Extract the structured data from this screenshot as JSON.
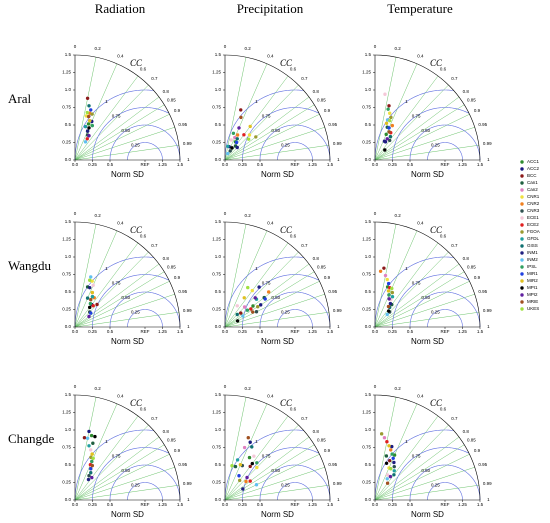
{
  "figure": {
    "column_titles": [
      "Radiation",
      "Precipitation",
      "Temperature"
    ],
    "row_titles": [
      "Aral",
      "Wangdu",
      "Changde"
    ],
    "legend": [
      {
        "name": "ACC1",
        "color": "#2e8b2e"
      },
      {
        "name": "ACC2",
        "color": "#1a1a80"
      },
      {
        "name": "BCC",
        "color": "#8b1a1a"
      },
      {
        "name": "Can1",
        "color": "#1f5f3f"
      },
      {
        "name": "Can2",
        "color": "#e080c0"
      },
      {
        "name": "CNR1",
        "color": "#f0e040"
      },
      {
        "name": "CNR2",
        "color": "#f08020"
      },
      {
        "name": "CNR3",
        "color": "#305050"
      },
      {
        "name": "ECE1",
        "color": "#f4c8d8"
      },
      {
        "name": "ECE2",
        "color": "#e02020"
      },
      {
        "name": "FGOA",
        "color": "#9a9a30"
      },
      {
        "name": "GFDL",
        "color": "#20a0a0"
      },
      {
        "name": "GISS",
        "color": "#107070"
      },
      {
        "name": "INM1",
        "color": "#202080"
      },
      {
        "name": "INM2",
        "color": "#60c0f0"
      },
      {
        "name": "IPSL",
        "color": "#30a060"
      },
      {
        "name": "MIR1",
        "color": "#2040e0"
      },
      {
        "name": "MIR2",
        "color": "#e0c020"
      },
      {
        "name": "MPI1",
        "color": "#000000"
      },
      {
        "name": "MPI2",
        "color": "#6020a0"
      },
      {
        "name": "MRIE",
        "color": "#a05020"
      },
      {
        "name": "UKES",
        "color": "#a0e040"
      }
    ]
  },
  "axes": {
    "xlabel": "Norm SD",
    "cc_label": "CC",
    "sdlim": [
      0,
      1.5
    ],
    "xticks": [
      {
        "value": 0,
        "label": "0.0"
      },
      0.25,
      0.5,
      {
        "value": 1,
        "label": "REF"
      },
      1.25,
      1.5
    ],
    "yticks": [
      {
        "value": 0,
        "label": "0.0"
      },
      0.25,
      0.5,
      0.75,
      {
        "value": 1,
        "label": "1.0"
      },
      1.25,
      1.5
    ],
    "cc_ticks": [
      0,
      0.2,
      0.4,
      0.6,
      0.7,
      0.8,
      0.85,
      0.9,
      0.95,
      0.99,
      1
    ],
    "rms_levels": [
      0.25,
      {
        "value": 0.5,
        "label": "0.50"
      },
      0.75,
      1
    ]
  },
  "chart_data": [
    {
      "type": "taylor",
      "sd": [
        0.55,
        0.6,
        0.9,
        0.45,
        0.5,
        0.65,
        0.7,
        0.4,
        0.6,
        0.35,
        0.7,
        0.5,
        0.8,
        0.45,
        0.3,
        0.55,
        0.75,
        0.6,
        0.5,
        0.4,
        0.65,
        0.7
      ],
      "cc": [
        0.35,
        0.4,
        0.2,
        0.4,
        0.3,
        0.25,
        0.3,
        0.45,
        0.35,
        0.5,
        0.35,
        0.3,
        0.25,
        0.4,
        0.5,
        0.45,
        0.3,
        0.35,
        0.4,
        0.5,
        0.3,
        0.25
      ]
    },
    {
      "type": "taylor",
      "sd": [
        0.3,
        0.2,
        0.75,
        0.25,
        0.35,
        0.5,
        0.4,
        0.15,
        0.3,
        0.45,
        0.55,
        0.2,
        0.35,
        0.25,
        0.1,
        0.4,
        0.3,
        0.6,
        0.2,
        0.5,
        0.65,
        0.45
      ],
      "cc": [
        0.5,
        0.3,
        0.3,
        0.6,
        0.4,
        0.7,
        0.45,
        0.5,
        0.3,
        0.6,
        0.8,
        0.2,
        0.5,
        0.7,
        0.4,
        0.3,
        0.55,
        0.6,
        0.5,
        0.4,
        0.35,
        0.75
      ]
    },
    {
      "type": "taylor",
      "sd": [
        0.4,
        0.3,
        0.8,
        0.5,
        0.6,
        0.7,
        0.55,
        0.35,
        0.95,
        0.45,
        0.65,
        0.5,
        0.4,
        0.3,
        0.6,
        0.75,
        0.5,
        0.55,
        0.2,
        0.35,
        0.45,
        0.6
      ],
      "cc": [
        0.4,
        0.5,
        0.25,
        0.35,
        0.3,
        0.3,
        0.45,
        0.6,
        0.15,
        0.5,
        0.35,
        0.4,
        0.55,
        0.45,
        0.3,
        0.25,
        0.4,
        0.3,
        0.7,
        0.5,
        0.45,
        0.35
      ]
    },
    {
      "type": "taylor",
      "sd": [
        0.5,
        0.4,
        0.45,
        0.6,
        0.55,
        0.7,
        0.5,
        0.3,
        0.65,
        0.4,
        0.35,
        0.5,
        0.45,
        0.6,
        0.75,
        0.4,
        0.3,
        0.55,
        0.35,
        0.25,
        0.45,
        0.7
      ],
      "cc": [
        0.5,
        0.6,
        0.7,
        0.3,
        0.45,
        0.35,
        0.55,
        0.7,
        0.4,
        0.65,
        0.6,
        0.5,
        0.4,
        0.35,
        0.3,
        0.55,
        0.75,
        0.45,
        0.6,
        0.8,
        0.5,
        0.3
      ]
    },
    {
      "type": "taylor",
      "sd": [
        0.5,
        0.6,
        0.3,
        0.7,
        0.4,
        0.65,
        0.8,
        0.5,
        0.35,
        0.45,
        0.55,
        0.6,
        0.25,
        0.75,
        0.3,
        0.4,
        0.7,
        0.5,
        0.2,
        0.6,
        0.45,
        0.65
      ],
      "cc": [
        0.8,
        0.85,
        0.75,
        0.8,
        0.7,
        0.6,
        0.78,
        0.9,
        0.5,
        0.82,
        0.85,
        0.75,
        0.7,
        0.65,
        0.85,
        0.8,
        0.82,
        0.55,
        0.9,
        0.72,
        0.88,
        0.5
      ]
    },
    {
      "type": "taylor",
      "sd": [
        0.6,
        0.5,
        0.85,
        0.4,
        0.75,
        0.7,
        0.8,
        0.3,
        0.45,
        0.6,
        0.55,
        0.5,
        0.35,
        0.4,
        0.25,
        0.5,
        0.65,
        0.55,
        0.3,
        0.45,
        0.35,
        0.6
      ],
      "cc": [
        0.3,
        0.4,
        0.15,
        0.6,
        0.2,
        0.25,
        0.1,
        0.7,
        0.5,
        0.35,
        0.45,
        0.5,
        0.6,
        0.55,
        0.7,
        0.4,
        0.3,
        0.35,
        0.65,
        0.45,
        0.55,
        0.4
      ]
    },
    {
      "type": "taylor",
      "sd": [
        0.95,
        1.0,
        0.9,
        0.85,
        0.6,
        0.7,
        0.5,
        0.4,
        0.75,
        0.55,
        0.65,
        0.8,
        0.45,
        0.35,
        0.9,
        0.6,
        0.5,
        0.7,
        0.95,
        0.4,
        0.55,
        0.65
      ],
      "cc": [
        0.25,
        0.2,
        0.15,
        0.3,
        0.4,
        0.35,
        0.45,
        0.5,
        0.3,
        0.4,
        0.35,
        0.25,
        0.5,
        0.55,
        0.2,
        0.4,
        0.45,
        0.35,
        0.3,
        0.6,
        0.45,
        0.4
      ]
    },
    {
      "type": "taylor",
      "sd": [
        0.7,
        0.9,
        0.6,
        0.5,
        0.8,
        0.65,
        0.4,
        0.55,
        0.75,
        0.45,
        0.35,
        0.6,
        0.85,
        0.3,
        0.5,
        0.7,
        0.4,
        0.55,
        0.65,
        0.45,
        0.95,
        0.5
      ],
      "cc": [
        0.5,
        0.4,
        0.6,
        0.3,
        0.35,
        0.7,
        0.75,
        0.45,
        0.55,
        0.8,
        0.6,
        0.3,
        0.45,
        0.85,
        0.9,
        0.65,
        0.5,
        0.4,
        0.6,
        0.7,
        0.35,
        0.2
      ]
    },
    {
      "type": "taylor",
      "sd": [
        0.7,
        0.8,
        0.6,
        0.65,
        0.9,
        0.5,
        0.75,
        0.55,
        0.4,
        0.85,
        0.95,
        0.5,
        0.45,
        0.6,
        0.35,
        0.7,
        0.65,
        0.8,
        0.55,
        0.4,
        0.3,
        0.5
      ],
      "cc": [
        0.4,
        0.3,
        0.35,
        0.25,
        0.15,
        0.4,
        0.3,
        0.5,
        0.45,
        0.2,
        0.1,
        0.55,
        0.6,
        0.45,
        0.5,
        0.35,
        0.4,
        0.25,
        0.3,
        0.55,
        0.6,
        0.45
      ]
    }
  ]
}
